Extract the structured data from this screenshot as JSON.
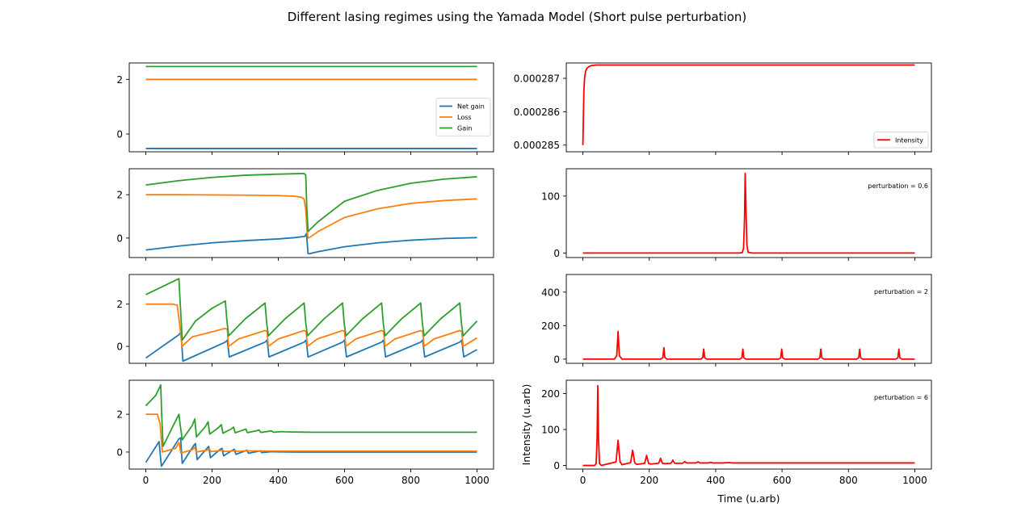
{
  "figure": {
    "title": "Different lasing regimes using the Yamada Model (Short pulse perturbation)"
  },
  "colors": {
    "net_gain": "#1f77b4",
    "loss": "#ff7f0e",
    "gain": "#2ca02c",
    "intensity": "#ff0000"
  },
  "chart_data": [
    {
      "type": "line",
      "panel": "left-1",
      "xlim": [
        -50,
        1050
      ],
      "ylim": [
        -0.65,
        2.6
      ],
      "xticks": [
        0,
        200,
        400,
        600,
        800,
        1000
      ],
      "yticks": [
        0,
        2
      ],
      "show_xticklabels": false,
      "legend": {
        "placement": "center-right",
        "entries": [
          "Net gain",
          "Loss",
          "Gain"
        ]
      },
      "series": [
        {
          "name": "Net gain",
          "x": [
            0,
            1000
          ],
          "y": [
            -0.53,
            -0.53
          ]
        },
        {
          "name": "Loss",
          "x": [
            0,
            1000
          ],
          "y": [
            2.0,
            2.0
          ]
        },
        {
          "name": "Gain",
          "x": [
            0,
            1000
          ],
          "y": [
            2.47,
            2.47
          ]
        }
      ]
    },
    {
      "type": "line",
      "panel": "right-1",
      "xlim": [
        -50,
        1050
      ],
      "ylim": [
        0.0002848,
        0.00028746
      ],
      "xticks": [
        0,
        200,
        400,
        600,
        800,
        1000
      ],
      "yticks": [
        0.000285,
        0.000286,
        0.000287
      ],
      "ytick_labels": [
        "0.000285",
        "0.000286",
        "0.000287"
      ],
      "show_xticklabels": false,
      "legend": {
        "placement": "lower-right",
        "entries": [
          "Intensity"
        ]
      },
      "series": [
        {
          "name": "Intensity",
          "x": [
            0,
            1,
            2,
            3,
            5,
            8,
            12,
            18,
            25,
            40,
            60,
            100,
            200,
            500,
            1000
          ],
          "y": [
            0.000285,
            0.0002855,
            0.0002861,
            0.0002866,
            0.000287,
            0.0002872,
            0.0002873,
            0.00028735,
            0.00028738,
            0.0002874,
            0.0002874,
            0.0002874,
            0.0002874,
            0.0002874,
            0.0002874
          ]
        }
      ]
    },
    {
      "type": "line",
      "panel": "left-2",
      "xlim": [
        -50,
        1050
      ],
      "ylim": [
        -0.9,
        3.2
      ],
      "xticks": [
        0,
        200,
        400,
        600,
        800,
        1000
      ],
      "yticks": [
        0,
        2
      ],
      "show_xticklabels": false,
      "series": [
        {
          "name": "Net gain",
          "x": [
            0,
            100,
            200,
            300,
            400,
            450,
            480,
            485,
            490,
            495,
            520,
            600,
            700,
            800,
            900,
            1000
          ],
          "y": [
            -0.55,
            -0.37,
            -0.22,
            -0.12,
            -0.04,
            0.02,
            0.08,
            0.2,
            -0.72,
            -0.72,
            -0.63,
            -0.4,
            -0.22,
            -0.1,
            -0.02,
            0.02
          ]
        },
        {
          "name": "Loss",
          "x": [
            0,
            100,
            200,
            300,
            400,
            450,
            470,
            478,
            483,
            487,
            490,
            495,
            520,
            600,
            700,
            800,
            900,
            1000
          ],
          "y": [
            2.0,
            2.0,
            1.99,
            1.98,
            1.96,
            1.93,
            1.88,
            1.8,
            1.3,
            0.3,
            0.0,
            0.03,
            0.3,
            0.95,
            1.35,
            1.6,
            1.73,
            1.81
          ]
        },
        {
          "name": "Gain",
          "x": [
            0,
            100,
            200,
            300,
            400,
            450,
            478,
            483,
            486,
            490,
            495,
            520,
            600,
            700,
            800,
            900,
            1000
          ],
          "y": [
            2.45,
            2.65,
            2.8,
            2.9,
            2.95,
            2.97,
            2.98,
            2.9,
            1.4,
            0.3,
            0.38,
            0.75,
            1.7,
            2.2,
            2.53,
            2.72,
            2.83
          ]
        }
      ]
    },
    {
      "type": "line",
      "panel": "right-2",
      "xlim": [
        -50,
        1050
      ],
      "ylim": [
        -8,
        148
      ],
      "xticks": [
        0,
        200,
        400,
        600,
        800,
        1000
      ],
      "yticks": [
        0,
        100
      ],
      "show_xticklabels": false,
      "annotation": "perturbation = 0.6",
      "series": [
        {
          "name": "Intensity",
          "x": [
            0,
            470,
            480,
            484,
            487,
            489,
            491,
            494,
            498,
            510,
            1000
          ],
          "y": [
            0,
            0,
            0.5,
            8,
            60,
            140,
            90,
            15,
            1,
            0,
            0
          ]
        }
      ]
    },
    {
      "type": "line",
      "panel": "left-3",
      "xlim": [
        -50,
        1050
      ],
      "ylim": [
        -0.8,
        3.4
      ],
      "xticks": [
        0,
        200,
        400,
        600,
        800,
        1000
      ],
      "yticks": [
        0,
        2
      ],
      "show_xticklabels": false,
      "series": [
        {
          "name": "Net gain",
          "x": [
            0,
            100,
            106,
            112,
            240,
            246,
            252,
            360,
            366,
            372,
            478,
            484,
            490,
            594,
            600,
            606,
            712,
            718,
            724,
            830,
            836,
            842,
            948,
            954,
            960,
            1000
          ],
          "y": [
            -0.55,
            0.55,
            0.7,
            -0.7,
            0.2,
            0.3,
            -0.5,
            0.2,
            0.3,
            -0.5,
            0.2,
            0.3,
            -0.5,
            0.2,
            0.3,
            -0.5,
            0.2,
            0.3,
            -0.5,
            0.2,
            0.3,
            -0.5,
            0.2,
            0.3,
            -0.5,
            -0.15
          ]
        },
        {
          "name": "Loss",
          "x": [
            0,
            80,
            95,
            104,
            109,
            140,
            240,
            246,
            250,
            280,
            360,
            366,
            370,
            400,
            478,
            484,
            488,
            518,
            594,
            600,
            604,
            634,
            712,
            718,
            722,
            752,
            830,
            836,
            840,
            870,
            948,
            954,
            958,
            1000
          ],
          "y": [
            2.0,
            2.0,
            1.95,
            0.8,
            0.0,
            0.45,
            0.85,
            0.8,
            0.0,
            0.35,
            0.75,
            0.7,
            0.0,
            0.35,
            0.75,
            0.7,
            0.0,
            0.35,
            0.75,
            0.7,
            0.0,
            0.35,
            0.75,
            0.7,
            0.0,
            0.35,
            0.75,
            0.7,
            0.0,
            0.35,
            0.75,
            0.7,
            0.0,
            0.4
          ]
        },
        {
          "name": "Gain",
          "x": [
            0,
            60,
            100,
            104,
            110,
            150,
            200,
            240,
            245,
            250,
            300,
            360,
            365,
            370,
            420,
            478,
            483,
            488,
            538,
            594,
            599,
            604,
            654,
            712,
            717,
            722,
            772,
            830,
            835,
            840,
            890,
            948,
            953,
            958,
            1000
          ],
          "y": [
            2.45,
            2.9,
            3.2,
            2.0,
            0.3,
            1.2,
            1.8,
            2.15,
            1.2,
            0.5,
            1.3,
            2.05,
            1.1,
            0.5,
            1.3,
            2.05,
            1.1,
            0.5,
            1.3,
            2.05,
            1.1,
            0.5,
            1.3,
            2.05,
            1.1,
            0.5,
            1.3,
            2.05,
            1.1,
            0.5,
            1.3,
            2.05,
            1.1,
            0.5,
            1.2
          ]
        }
      ]
    },
    {
      "type": "line",
      "panel": "right-3",
      "xlim": [
        -50,
        1050
      ],
      "ylim": [
        -25,
        505
      ],
      "xticks": [
        0,
        200,
        400,
        600,
        800,
        1000
      ],
      "yticks": [
        0,
        200,
        400
      ],
      "show_xticklabels": false,
      "annotation": "perturbation = 2",
      "series": [
        {
          "name": "Intensity",
          "x": [
            0,
            95,
            102,
            106,
            110,
            118,
            235,
            241,
            244,
            247,
            253,
            355,
            361,
            364,
            367,
            373,
            473,
            479,
            482,
            485,
            491,
            590,
            596,
            599,
            602,
            608,
            708,
            714,
            717,
            720,
            726,
            825,
            831,
            834,
            837,
            843,
            943,
            949,
            952,
            955,
            961,
            1000
          ],
          "y": [
            0,
            0,
            20,
            165,
            20,
            0,
            0,
            10,
            68,
            10,
            0,
            0,
            8,
            60,
            8,
            0,
            0,
            8,
            60,
            8,
            0,
            0,
            8,
            60,
            8,
            0,
            0,
            8,
            60,
            8,
            0,
            0,
            8,
            60,
            8,
            0,
            0,
            8,
            60,
            8,
            0,
            0
          ]
        }
      ]
    },
    {
      "type": "line",
      "panel": "left-4",
      "xlim": [
        -50,
        1050
      ],
      "ylim": [
        -0.9,
        3.8
      ],
      "xticks": [
        0,
        200,
        400,
        600,
        800,
        1000
      ],
      "yticks": [
        0,
        2
      ],
      "xtick_labels": [
        "0",
        "200",
        "400",
        "600",
        "800",
        "1000"
      ],
      "series": [
        {
          "name": "Net gain",
          "x": [
            0,
            40,
            47,
            53,
            100,
            105,
            110,
            145,
            150,
            155,
            185,
            190,
            195,
            225,
            230,
            235,
            262,
            267,
            272,
            300,
            305,
            310,
            340,
            345,
            350,
            380,
            400,
            450,
            500,
            1000
          ],
          "y": [
            -0.55,
            0.55,
            -0.75,
            -0.6,
            0.7,
            0.75,
            -0.6,
            0.35,
            0.45,
            -0.4,
            0.2,
            0.3,
            -0.3,
            0.15,
            0.2,
            -0.2,
            0.1,
            0.15,
            -0.12,
            0.06,
            0.1,
            -0.06,
            0.04,
            0.06,
            -0.03,
            0.02,
            0.01,
            0.0,
            0.0,
            0.0
          ]
        },
        {
          "name": "Loss",
          "x": [
            0,
            35,
            43,
            50,
            90,
            100,
            106,
            140,
            148,
            152,
            185,
            192,
            196,
            225,
            232,
            236,
            265,
            270,
            274,
            300,
            340,
            400,
            500,
            1000
          ],
          "y": [
            2.0,
            2.0,
            1.5,
            0.0,
            0.2,
            0.5,
            -0.05,
            0.12,
            0.25,
            0.0,
            0.1,
            0.18,
            0.02,
            0.08,
            0.12,
            0.03,
            0.06,
            0.09,
            0.04,
            0.06,
            0.06,
            0.05,
            0.05,
            0.05
          ]
        },
        {
          "name": "Gain",
          "x": [
            0,
            30,
            45,
            48,
            52,
            80,
            100,
            104,
            110,
            140,
            148,
            153,
            180,
            188,
            193,
            220,
            228,
            233,
            258,
            265,
            270,
            295,
            302,
            307,
            335,
            342,
            347,
            372,
            380,
            385,
            410,
            420,
            450,
            500,
            600,
            1000
          ],
          "y": [
            2.45,
            3.0,
            3.55,
            2.0,
            0.3,
            1.3,
            2.0,
            1.4,
            0.65,
            1.4,
            1.75,
            0.8,
            1.35,
            1.6,
            0.95,
            1.3,
            1.45,
            1.0,
            1.22,
            1.32,
            1.02,
            1.17,
            1.22,
            1.03,
            1.13,
            1.17,
            1.04,
            1.1,
            1.12,
            1.05,
            1.08,
            1.07,
            1.06,
            1.05,
            1.05,
            1.05
          ]
        }
      ]
    },
    {
      "type": "line",
      "panel": "right-4",
      "xlim": [
        -50,
        1050
      ],
      "ylim": [
        -10,
        237
      ],
      "xticks": [
        0,
        200,
        400,
        600,
        800,
        1000
      ],
      "yticks": [
        0,
        100,
        200
      ],
      "xtick_labels": [
        "0",
        "200",
        "400",
        "600",
        "800",
        "1000"
      ],
      "xlabel": "Time (u.arb)",
      "ylabel": "Intensity (u.arb)",
      "annotation": "perturbation = 6",
      "series": [
        {
          "name": "Intensity",
          "x": [
            0,
            35,
            40,
            43,
            45,
            47,
            50,
            56,
            100,
            104,
            106,
            108,
            112,
            118,
            144,
            148,
            150,
            152,
            156,
            162,
            186,
            190,
            192,
            194,
            198,
            204,
            228,
            232,
            234,
            236,
            240,
            246,
            265,
            269,
            271,
            273,
            277,
            300,
            305,
            307,
            309,
            313,
            340,
            345,
            347,
            349,
            353,
            378,
            383,
            385,
            387,
            391,
            420,
            440,
            450,
            500,
            600,
            1000
          ],
          "y": [
            0,
            0,
            5,
            80,
            222,
            80,
            5,
            0,
            10,
            50,
            70,
            50,
            10,
            2,
            8,
            32,
            42,
            32,
            8,
            3,
            6,
            20,
            28,
            20,
            6,
            4,
            6,
            14,
            20,
            14,
            6,
            5,
            6,
            11,
            15,
            11,
            6,
            6,
            9,
            11,
            9,
            7,
            7,
            9,
            10,
            9,
            7,
            7,
            8,
            9,
            8,
            7,
            7,
            8,
            7,
            7,
            7,
            7
          ]
        }
      ]
    }
  ]
}
